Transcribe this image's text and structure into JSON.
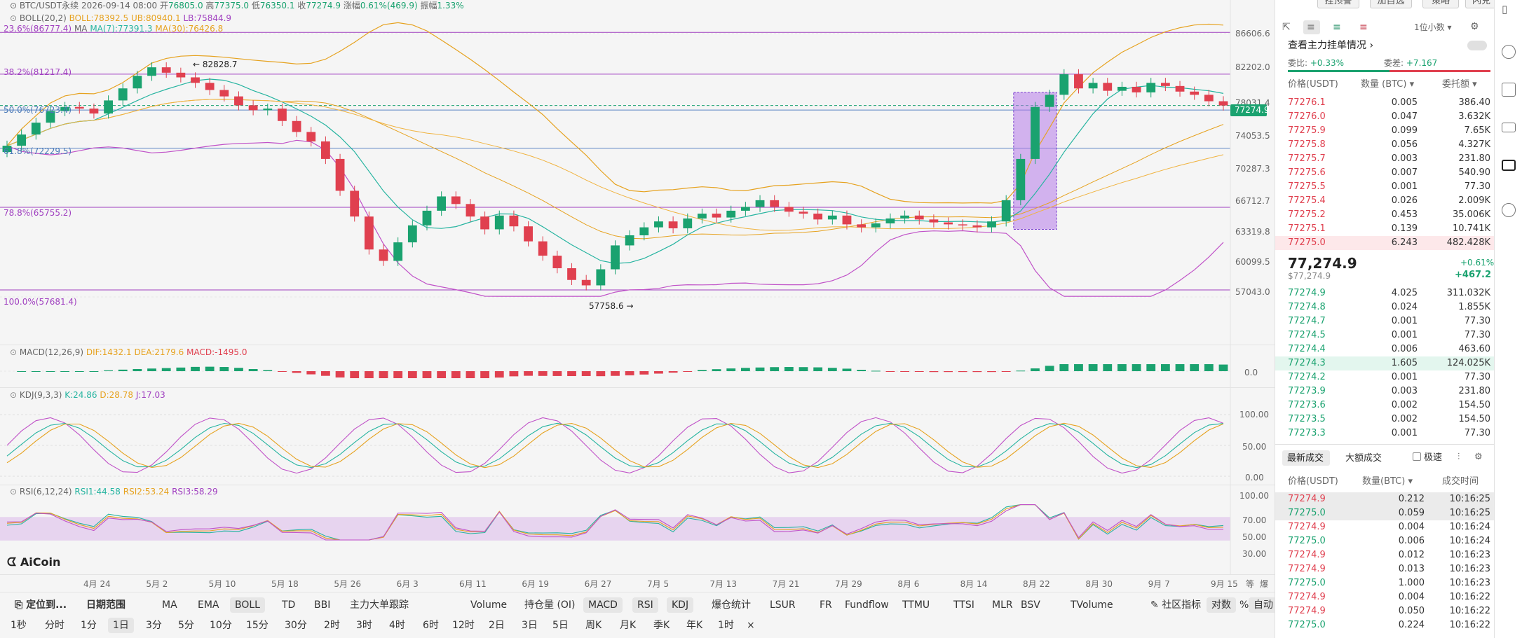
{
  "header": {
    "symbol": "BTC/USDT永续",
    "datetime": "2026-09-14 08:00",
    "open_label": "开",
    "open": "76805.0",
    "high_label": "高",
    "high": "77375.0",
    "low_label": "低",
    "low": "76350.1",
    "close_label": "收",
    "close": "77274.9",
    "change_label": "涨幅",
    "change": "0.61%(469.9)",
    "amp_label": "振幅",
    "amp": "1.33%"
  },
  "indicators": {
    "boll": {
      "name": "BOLL(20,2)",
      "boll": "BOLL:78392.5",
      "ub": "UB:80940.1",
      "lb": "LB:75844.9"
    },
    "ma": {
      "fib_label": "23.6%(86777.4)",
      "name": "MA",
      "ma7": "MA(7):77391.3",
      "ma30": "MA(30):76426.8"
    },
    "macd": {
      "name": "MACD(12,26,9)",
      "dif": "DIF:1432.1",
      "dea": "DEA:2179.6",
      "macd": "MACD:-1495.0",
      "zero": "0.0"
    },
    "kdj": {
      "name": "KDJ(9,3,3)",
      "k": "K:24.86",
      "d": "D:28.78",
      "j": "J:17.03",
      "ticks": [
        "100.00",
        "50.00",
        "0.00"
      ]
    },
    "rsi": {
      "name": "RSI(6,12,24)",
      "rsi1": "RSI1:44.58",
      "rsi2": "RSI2:53.24",
      "rsi3": "RSI3:58.29",
      "ticks": [
        "100.00",
        "70.00",
        "50.00",
        "30.00"
      ]
    }
  },
  "fib_levels": [
    "38.2%(81217.4)",
    "50.0%(76723.4)",
    "61.8%(72229.5)",
    "78.8%(65755.2)",
    "100.0%(57681.4)"
  ],
  "annotations": {
    "high": "← 82828.7",
    "low": "57758.6 →"
  },
  "price_axis": [
    "86606.6",
    "82202.0",
    "78031.4",
    "74053.5",
    "70287.3",
    "66712.7",
    "63319.8",
    "60099.5",
    "57043.0"
  ],
  "last_price_tag": "77274.9",
  "date_axis": [
    "4月 24",
    "5月 2",
    "5月 10",
    "5月 18",
    "5月 26",
    "6月 3",
    "6月 11",
    "6月 19",
    "6月 27",
    "7月 5",
    "7月 13",
    "7月 21",
    "7月 29",
    "8月 6",
    "8月 14",
    "8月 22",
    "8月 30",
    "9月 7",
    "9月 15"
  ],
  "axis_corner": {
    "a": "等",
    "b": "爆"
  },
  "watermark": "AiCoin",
  "toolbar1": {
    "locate": "定位到...",
    "date_range": "日期范围",
    "items": [
      "MA",
      "EMA",
      "BOLL",
      "TD",
      "BBI",
      "主力大单跟踪",
      "Volume",
      "持仓量 (OI)",
      "MACD",
      "RSI",
      "KDJ",
      "爆仓统计",
      "LSUR",
      "FR",
      "Fundflow",
      "TTMU",
      "TTSI",
      "MLR",
      "BSV",
      "TVolume"
    ],
    "selected": [
      "BOLL",
      "MACD",
      "RSI",
      "KDJ"
    ],
    "community": "社区指标",
    "log": "对数",
    "pct": "%",
    "auto": "自动"
  },
  "toolbar2": {
    "items": [
      "1秒",
      "分时",
      "1分",
      "1日",
      "3分",
      "5分",
      "10分",
      "15分",
      "30分",
      "2时",
      "3时",
      "4时",
      "6时",
      "12时",
      "2日",
      "3日",
      "5日",
      "周K",
      "月K",
      "季K",
      "年K",
      "1时"
    ],
    "selected": "1日",
    "close": "×"
  },
  "orderbook": {
    "top_buttons": [
      "挂预警",
      "加自选",
      "策略",
      "闪兑"
    ],
    "precision": "1位小数",
    "main_orders": "查看主力挂单情况",
    "ratio_label": "委比:",
    "ratio": "+0.33%",
    "diff_label": "委差:",
    "diff": "+7.167",
    "col_price": "价格(USDT)",
    "col_qty": "数量 (BTC)",
    "col_total": "委托额",
    "asks": [
      [
        "77276.1",
        "0.005",
        "386.40"
      ],
      [
        "77276.0",
        "0.047",
        "3.632K"
      ],
      [
        "77275.9",
        "0.099",
        "7.65K"
      ],
      [
        "77275.8",
        "0.056",
        "4.327K"
      ],
      [
        "77275.7",
        "0.003",
        "231.80"
      ],
      [
        "77275.6",
        "0.007",
        "540.90"
      ],
      [
        "77275.5",
        "0.001",
        "77.30"
      ],
      [
        "77275.4",
        "0.026",
        "2.009K"
      ],
      [
        "77275.2",
        "0.453",
        "35.006K"
      ],
      [
        "77275.1",
        "0.139",
        "10.741K"
      ],
      [
        "77275.0",
        "6.243",
        "482.428K"
      ]
    ],
    "mid_price": "77,274.9",
    "mid_usd": "$77,274.9",
    "mid_change": "+0.61%",
    "mid_change_abs": "+467.2",
    "bids": [
      [
        "77274.9",
        "4.025",
        "311.032K"
      ],
      [
        "77274.8",
        "0.024",
        "1.855K"
      ],
      [
        "77274.7",
        "0.001",
        "77.30"
      ],
      [
        "77274.5",
        "0.001",
        "77.30"
      ],
      [
        "77274.4",
        "0.006",
        "463.60"
      ],
      [
        "77274.3",
        "1.605",
        "124.025K"
      ],
      [
        "77274.2",
        "0.001",
        "77.30"
      ],
      [
        "77273.9",
        "0.003",
        "231.80"
      ],
      [
        "77273.6",
        "0.002",
        "154.50"
      ],
      [
        "77273.5",
        "0.002",
        "154.50"
      ],
      [
        "77273.3",
        "0.001",
        "77.30"
      ]
    ],
    "trades_tab": "最新成交",
    "big_trades_tab": "大额成交",
    "fast_label": "极速",
    "trades_col_price": "价格(USDT)",
    "trades_col_qty": "数量(BTC)",
    "trades_col_time": "成交时间",
    "trades": [
      [
        "77274.9",
        "0.212",
        "10:16:25",
        "s"
      ],
      [
        "77275.0",
        "0.059",
        "10:16:25",
        "b"
      ],
      [
        "77274.9",
        "0.004",
        "10:16:24",
        "s"
      ],
      [
        "77275.0",
        "0.006",
        "10:16:24",
        "b"
      ],
      [
        "77274.9",
        "0.012",
        "10:16:23",
        "s"
      ],
      [
        "77274.9",
        "0.013",
        "10:16:23",
        "s"
      ],
      [
        "77275.0",
        "1.000",
        "10:16:23",
        "b"
      ],
      [
        "77274.9",
        "0.004",
        "10:16:22",
        "s"
      ],
      [
        "77274.9",
        "0.050",
        "10:16:22",
        "s"
      ],
      [
        "77275.0",
        "0.224",
        "10:16:22",
        "b"
      ]
    ]
  },
  "colors": {
    "up": "#1aa26f",
    "down": "#e0404f",
    "boll_mid": "#e6a21f",
    "boll_band": "#c052c8",
    "ma7": "#26b4a0",
    "fib": "#a040c0"
  },
  "chart_data": {
    "type": "candlestick",
    "interval": "1日",
    "series_close_approx": [
      72500,
      73800,
      75200,
      76600,
      77100,
      76900,
      76300,
      77900,
      79400,
      81000,
      82100,
      81400,
      80800,
      80100,
      79200,
      78400,
      77300,
      76700,
      76900,
      75400,
      74100,
      73000,
      71000,
      67500,
      64800,
      61500,
      60400,
      62200,
      63900,
      65400,
      66900,
      66100,
      64800,
      63500,
      64900,
      63800,
      62300,
      60900,
      59700,
      58600,
      58100,
      59600,
      61900,
      62900,
      63700,
      64300,
      63600,
      64600,
      65100,
      64700,
      65400,
      65800,
      66500,
      65800,
      65300,
      65100,
      64500,
      64900,
      64000,
      63700,
      64100,
      64600,
      64900,
      64500,
      64200,
      64000,
      63900,
      63700,
      64300,
      66500,
      71000,
      77100,
      78600,
      81200,
      79400,
      80100,
      79100,
      79600,
      78900,
      80100,
      79700,
      79000,
      78600,
      77800,
      77274.9
    ],
    "ylim": [
      57043.0,
      86606.6
    ]
  }
}
